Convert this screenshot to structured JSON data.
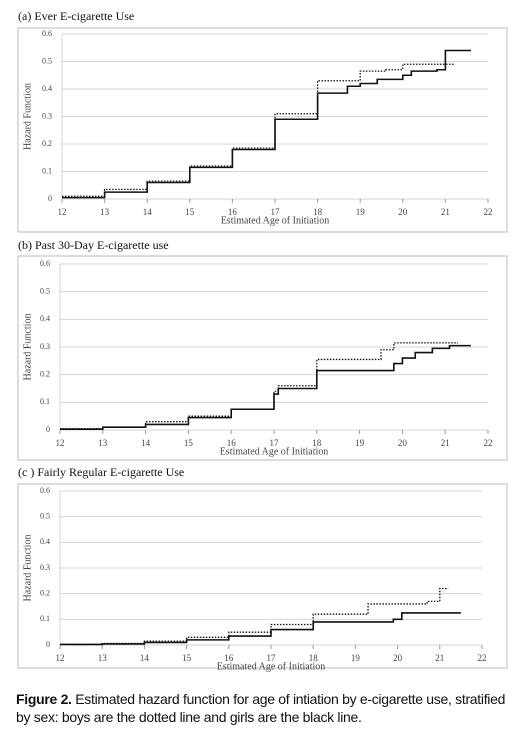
{
  "chart_data": [
    {
      "type": "step",
      "title": "(a) Ever E-cigarette Use",
      "x_label": "Estimated Age of Initiation",
      "y_label": "Hazard Function",
      "xlim": [
        12,
        22
      ],
      "xticks": [
        12,
        13,
        14,
        15,
        16,
        17,
        18,
        19,
        20,
        21,
        22
      ],
      "ylim": [
        0,
        0.6
      ],
      "yticks": [
        0,
        0.1,
        0.2,
        0.3,
        0.4,
        0.5,
        0.6
      ],
      "grid": true,
      "series": [
        {
          "color": "#111111",
          "dash": "solid",
          "x": [
            12,
            13,
            14,
            15,
            16,
            17,
            18,
            18.7,
            19,
            19.4,
            20,
            20.2,
            20.8,
            21,
            21.6
          ],
          "values": [
            0.005,
            0.025,
            0.06,
            0.115,
            0.18,
            0.29,
            0.385,
            0.41,
            0.42,
            0.435,
            0.45,
            0.465,
            0.47,
            0.54,
            0.54
          ]
        },
        {
          "color": "#111111",
          "dash": "dotted",
          "x": [
            12,
            13,
            14,
            15,
            16,
            17,
            18,
            19,
            19.6,
            20,
            21.2
          ],
          "values": [
            0.01,
            0.035,
            0.065,
            0.12,
            0.185,
            0.31,
            0.43,
            0.465,
            0.47,
            0.49,
            0.49
          ]
        }
      ]
    },
    {
      "type": "step",
      "title": "(b) Past 30-Day E-cigarette use",
      "x_label": "Estimated Age of Initiation",
      "y_label": "Hazard Function",
      "xlim": [
        12,
        22
      ],
      "xticks": [
        12,
        13,
        14,
        15,
        16,
        17,
        18,
        19,
        20,
        21,
        22
      ],
      "ylim": [
        0,
        0.6
      ],
      "yticks": [
        0,
        0.1,
        0.2,
        0.3,
        0.4,
        0.5,
        0.6
      ],
      "grid": true,
      "series": [
        {
          "color": "#111111",
          "dash": "solid",
          "x": [
            12,
            13,
            14,
            15,
            16,
            17,
            17.1,
            18,
            19.8,
            20,
            20.3,
            20.7,
            21.1,
            21.6
          ],
          "values": [
            0.003,
            0.01,
            0.02,
            0.045,
            0.075,
            0.13,
            0.15,
            0.215,
            0.24,
            0.26,
            0.28,
            0.295,
            0.305,
            0.305
          ]
        },
        {
          "color": "#111111",
          "dash": "dotted",
          "x": [
            12,
            13,
            14,
            15,
            16,
            17,
            17.1,
            18,
            19.5,
            19.8,
            21.3
          ],
          "values": [
            0.005,
            0.01,
            0.03,
            0.05,
            0.075,
            0.14,
            0.16,
            0.255,
            0.29,
            0.315,
            0.315
          ]
        }
      ]
    },
    {
      "type": "step",
      "title": "(c ) Fairly Regular E-cigarette Use",
      "x_label": "Estimated Age of Initiation",
      "y_label": "Hazard Function",
      "xlim": [
        12,
        22
      ],
      "xticks": [
        12,
        13,
        14,
        15,
        16,
        17,
        18,
        19,
        20,
        21,
        22
      ],
      "ylim": [
        0,
        0.6
      ],
      "yticks": [
        0,
        0.1,
        0.2,
        0.3,
        0.4,
        0.5,
        0.6
      ],
      "grid": true,
      "series": [
        {
          "color": "#111111",
          "dash": "solid",
          "x": [
            12,
            13,
            14,
            15,
            16,
            17,
            18,
            19.9,
            20.1,
            21.5
          ],
          "values": [
            0.002,
            0.004,
            0.01,
            0.02,
            0.035,
            0.06,
            0.09,
            0.1,
            0.125,
            0.125
          ]
        },
        {
          "color": "#111111",
          "dash": "dotted",
          "x": [
            12,
            13,
            14,
            15,
            16,
            17,
            18,
            19.3,
            20.7,
            21,
            21.2
          ],
          "values": [
            0.002,
            0.006,
            0.015,
            0.03,
            0.05,
            0.08,
            0.12,
            0.16,
            0.17,
            0.22,
            0.22
          ]
        }
      ]
    }
  ],
  "caption": {
    "label": "Figure 2.",
    "text": "Estimated hazard function for age of intiation by e-cigarette use, stratified by sex: boys are the dotted line and girls are the black line."
  }
}
